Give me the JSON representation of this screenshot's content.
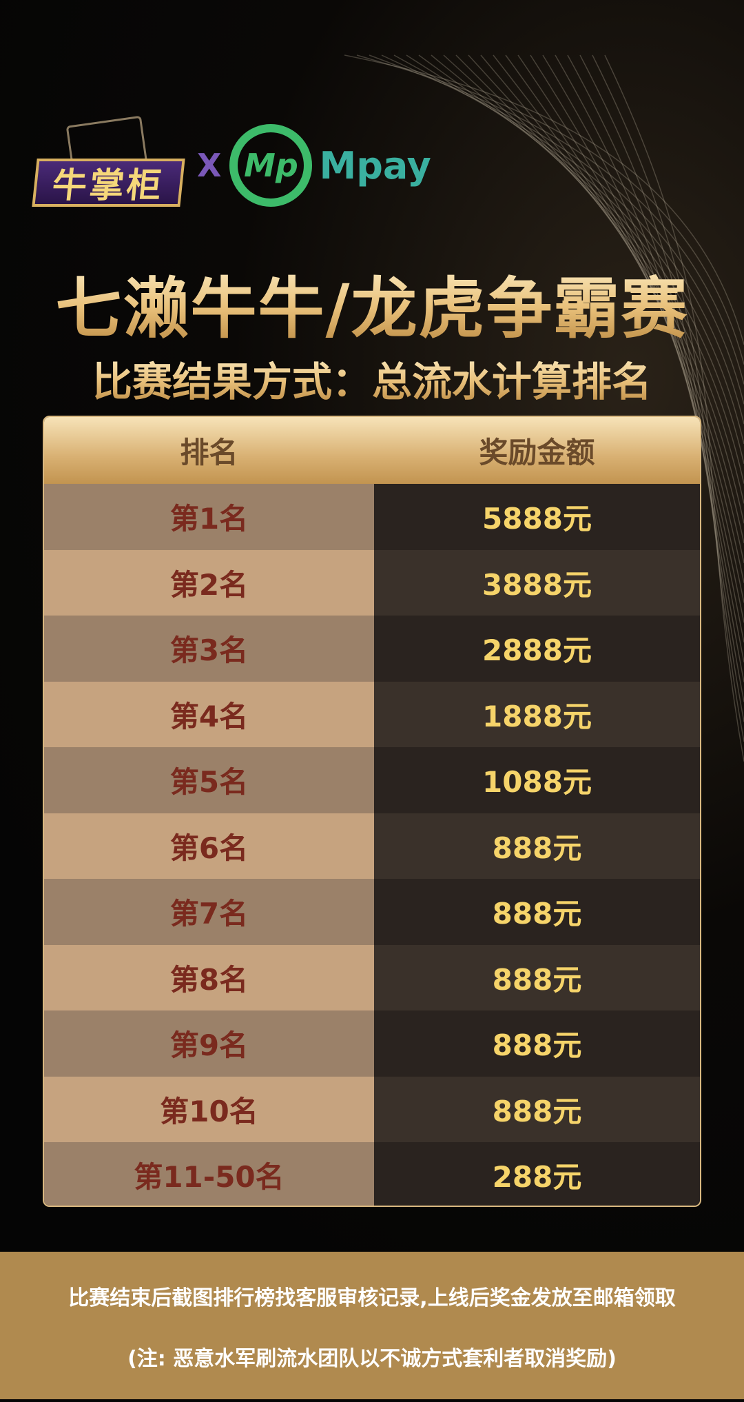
{
  "logos": {
    "left_brand": "牛掌柜",
    "separator": "X",
    "right_brand": "Mpay",
    "right_mark": "Mp"
  },
  "title": "七濑牛牛/龙虎争霸赛",
  "subtitle": "比赛结果方式：总流水计算排名",
  "table": {
    "headers": [
      "排名",
      "奖励金额"
    ],
    "rows": [
      {
        "rank": "第1名",
        "prize": "5888元"
      },
      {
        "rank": "第2名",
        "prize": "3888元"
      },
      {
        "rank": "第3名",
        "prize": "2888元"
      },
      {
        "rank": "第4名",
        "prize": "1888元"
      },
      {
        "rank": "第5名",
        "prize": "1088元"
      },
      {
        "rank": "第6名",
        "prize": "888元"
      },
      {
        "rank": "第7名",
        "prize": "888元"
      },
      {
        "rank": "第8名",
        "prize": "888元"
      },
      {
        "rank": "第9名",
        "prize": "888元"
      },
      {
        "rank": "第10名",
        "prize": "888元"
      },
      {
        "rank": "第11-50名",
        "prize": "288元"
      }
    ]
  },
  "footer": {
    "line1": "比赛结束后截图排行榜找客服审核记录,上线后奖金发放至邮箱领取",
    "line2": "(注: 恶意水军刷流水团队以不诚方式套利者取消奖励)"
  },
  "colors": {
    "gold": "#f6d46a",
    "rank_text": "#7a2a1e",
    "footer_bg": "#b08a4f",
    "mpay_green": "#3dbb6a"
  }
}
